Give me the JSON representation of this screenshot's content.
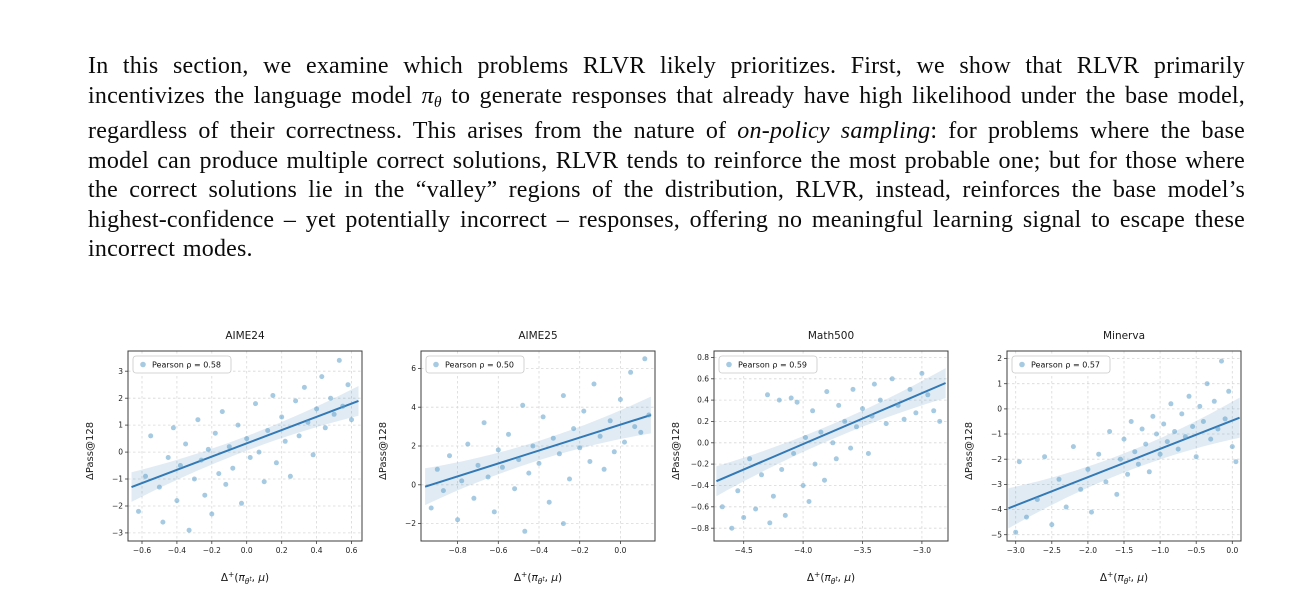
{
  "page": {
    "background": "#ffffff"
  },
  "paragraph": {
    "segments": [
      {
        "text": "In this section, we examine which problems RLVR likely prioritizes. First, we show that RLVR primarily incentivizes the language model ",
        "style": "normal"
      },
      {
        "text": "π",
        "style": "italic"
      },
      {
        "text": "θ",
        "style": "sub"
      },
      {
        "text": " to generate responses that already have high likelihood under the base model, regardless of their correctness. This arises from the nature of ",
        "style": "normal"
      },
      {
        "text": "on-policy sampling",
        "style": "italic"
      },
      {
        "text": ": for problems where the base model can produce multiple correct solutions, RLVR tends to reinforce the most probable one; but for those where the correct solutions lie in the “valley” regions of the distribution, RLVR, instead, reinforces the base model’s highest-confidence – yet potentially incorrect – responses, offering no meaningful learning signal to escape these incorrect modes.",
        "style": "normal"
      }
    ]
  },
  "figure": {
    "ylabel": "ΔPass@128",
    "xlabel_text": "Δ⁺(π_θᵗ, μ)",
    "xlabel_segments": [
      {
        "t": "Δ"
      },
      {
        "t": "+",
        "m": "sup"
      },
      {
        "t": "("
      },
      {
        "t": "π",
        "m": "i"
      },
      {
        "t": "θ",
        "m": "sub"
      },
      {
        "t": "t",
        "m": "subsup"
      },
      {
        "t": ", "
      },
      {
        "t": "μ",
        "m": "i"
      },
      {
        "t": ")"
      }
    ],
    "colors": {
      "point": "#5b9ec9",
      "line": "#3279b5",
      "grid": "#d8d8d8",
      "spine": "#3c3c3c"
    }
  },
  "chart_data": [
    {
      "type": "scatter",
      "title": "AIME24",
      "legend": "Pearson ρ = 0.58",
      "pearson_rho": 0.58,
      "xlabel": "Δ⁺(π_θᵗ, μ)",
      "ylabel": "ΔPass@128",
      "xlim": [
        -0.68,
        0.66
      ],
      "ylim": [
        -3.3,
        3.75
      ],
      "xticks": [
        -0.6,
        -0.4,
        -0.2,
        0,
        0.2,
        0.4,
        0.6
      ],
      "xtick_labels": [
        "−0.6",
        "−0.4",
        "−0.2",
        "0.0",
        "0.2",
        "0.4",
        "0.6"
      ],
      "yticks": [
        -3,
        -2,
        -1,
        0,
        1,
        2,
        3
      ],
      "ytick_labels": [
        "−3",
        "−2",
        "−1",
        "0",
        "1",
        "2",
        "3"
      ],
      "regression": {
        "x0": -0.66,
        "y0": -1.3,
        "x1": 0.64,
        "y1": 1.9,
        "band_end": 0.55,
        "band_mid": 0.27
      },
      "points": [
        [
          -0.62,
          -2.2
        ],
        [
          -0.58,
          -0.9
        ],
        [
          -0.55,
          0.6
        ],
        [
          -0.5,
          -1.3
        ],
        [
          -0.48,
          -2.6
        ],
        [
          -0.45,
          -0.2
        ],
        [
          -0.42,
          0.9
        ],
        [
          -0.4,
          -1.8
        ],
        [
          -0.38,
          -0.5
        ],
        [
          -0.35,
          0.3
        ],
        [
          -0.33,
          -2.9
        ],
        [
          -0.3,
          -1.0
        ],
        [
          -0.28,
          1.2
        ],
        [
          -0.26,
          -0.3
        ],
        [
          -0.24,
          -1.6
        ],
        [
          -0.22,
          0.1
        ],
        [
          -0.2,
          -2.3
        ],
        [
          -0.18,
          0.7
        ],
        [
          -0.16,
          -0.8
        ],
        [
          -0.14,
          1.5
        ],
        [
          -0.12,
          -1.2
        ],
        [
          -0.1,
          0.2
        ],
        [
          -0.08,
          -0.6
        ],
        [
          -0.05,
          1.0
        ],
        [
          -0.03,
          -1.9
        ],
        [
          0.0,
          0.5
        ],
        [
          0.02,
          -0.2
        ],
        [
          0.05,
          1.8
        ],
        [
          0.07,
          0.0
        ],
        [
          0.1,
          -1.1
        ],
        [
          0.12,
          0.8
        ],
        [
          0.15,
          2.1
        ],
        [
          0.17,
          -0.4
        ],
        [
          0.2,
          1.3
        ],
        [
          0.22,
          0.4
        ],
        [
          0.25,
          -0.9
        ],
        [
          0.28,
          1.9
        ],
        [
          0.3,
          0.6
        ],
        [
          0.33,
          2.4
        ],
        [
          0.35,
          1.1
        ],
        [
          0.38,
          -0.1
        ],
        [
          0.4,
          1.6
        ],
        [
          0.43,
          2.8
        ],
        [
          0.45,
          0.9
        ],
        [
          0.48,
          2.0
        ],
        [
          0.5,
          1.4
        ],
        [
          0.53,
          3.4
        ],
        [
          0.55,
          1.7
        ],
        [
          0.58,
          2.5
        ],
        [
          0.6,
          1.2
        ]
      ]
    },
    {
      "type": "scatter",
      "title": "AIME25",
      "legend": "Pearson ρ = 0.50",
      "pearson_rho": 0.5,
      "xlabel": "Δ⁺(π_θᵗ, μ)",
      "ylabel": "ΔPass@128",
      "xlim": [
        -0.98,
        0.17
      ],
      "ylim": [
        -2.9,
        6.9
      ],
      "xticks": [
        -0.8,
        -0.6,
        -0.4,
        -0.2,
        0
      ],
      "xtick_labels": [
        "−0.8",
        "−0.6",
        "−0.4",
        "−0.2",
        "0.0"
      ],
      "yticks": [
        -2,
        0,
        2,
        4,
        6
      ],
      "ytick_labels": [
        "−2",
        "0",
        "2",
        "4",
        "6"
      ],
      "regression": {
        "x0": -0.96,
        "y0": -0.1,
        "x1": 0.15,
        "y1": 3.6,
        "band_end": 0.95,
        "band_mid": 0.5
      },
      "points": [
        [
          -0.93,
          -1.2
        ],
        [
          -0.9,
          0.8
        ],
        [
          -0.87,
          -0.3
        ],
        [
          -0.84,
          1.5
        ],
        [
          -0.8,
          -1.8
        ],
        [
          -0.78,
          0.2
        ],
        [
          -0.75,
          2.1
        ],
        [
          -0.72,
          -0.7
        ],
        [
          -0.7,
          1.0
        ],
        [
          -0.67,
          3.2
        ],
        [
          -0.65,
          0.4
        ],
        [
          -0.62,
          -1.4
        ],
        [
          -0.6,
          1.8
        ],
        [
          -0.58,
          0.9
        ],
        [
          -0.55,
          2.6
        ],
        [
          -0.52,
          -0.2
        ],
        [
          -0.5,
          1.3
        ],
        [
          -0.48,
          4.1
        ],
        [
          -0.47,
          -2.4
        ],
        [
          -0.45,
          0.6
        ],
        [
          -0.43,
          2.0
        ],
        [
          -0.4,
          1.1
        ],
        [
          -0.38,
          3.5
        ],
        [
          -0.35,
          -0.9
        ],
        [
          -0.33,
          2.4
        ],
        [
          -0.3,
          1.6
        ],
        [
          -0.28,
          -2.0
        ],
        [
          -0.28,
          4.6
        ],
        [
          -0.25,
          0.3
        ],
        [
          -0.23,
          2.9
        ],
        [
          -0.2,
          1.9
        ],
        [
          -0.18,
          3.8
        ],
        [
          -0.15,
          1.2
        ],
        [
          -0.13,
          5.2
        ],
        [
          -0.1,
          2.5
        ],
        [
          -0.08,
          0.8
        ],
        [
          -0.05,
          3.3
        ],
        [
          -0.03,
          1.7
        ],
        [
          0.0,
          4.4
        ],
        [
          0.02,
          2.2
        ],
        [
          0.05,
          5.8
        ],
        [
          0.07,
          3.0
        ],
        [
          0.1,
          2.7
        ],
        [
          0.12,
          6.5
        ],
        [
          0.14,
          3.6
        ]
      ]
    },
    {
      "type": "scatter",
      "title": "Math500",
      "legend": "Pearson ρ = 0.59",
      "pearson_rho": 0.59,
      "xlabel": "Δ⁺(π_θᵗ, μ)",
      "ylabel": "ΔPass@128",
      "xlim": [
        -4.75,
        -2.78
      ],
      "ylim": [
        -0.92,
        0.86
      ],
      "xticks": [
        -4.5,
        -4.0,
        -3.5,
        -3.0
      ],
      "xtick_labels": [
        "−4.5",
        "−4.0",
        "−3.5",
        "−3.0"
      ],
      "yticks": [
        -0.8,
        -0.6,
        -0.4,
        -0.2,
        0,
        0.2,
        0.4,
        0.6,
        0.8
      ],
      "ytick_labels": [
        "−0.8",
        "−0.6",
        "−0.4",
        "−0.2",
        "0.0",
        "0.2",
        "0.4",
        "0.6",
        "0.8"
      ],
      "regression": {
        "x0": -4.73,
        "y0": -0.36,
        "x1": -2.8,
        "y1": 0.56,
        "band_end": 0.14,
        "band_mid": 0.07
      },
      "points": [
        [
          -4.68,
          -0.6
        ],
        [
          -4.65,
          0.75
        ],
        [
          -4.6,
          -0.8
        ],
        [
          -4.55,
          -0.45
        ],
        [
          -4.5,
          -0.7
        ],
        [
          -4.45,
          -0.15
        ],
        [
          -4.4,
          -0.62
        ],
        [
          -4.35,
          -0.3
        ],
        [
          -4.3,
          0.45
        ],
        [
          -4.28,
          -0.75
        ],
        [
          -4.25,
          -0.5
        ],
        [
          -4.2,
          0.4
        ],
        [
          -4.18,
          -0.25
        ],
        [
          -4.15,
          -0.68
        ],
        [
          -4.1,
          0.42
        ],
        [
          -4.08,
          -0.1
        ],
        [
          -4.05,
          0.38
        ],
        [
          -4.0,
          -0.4
        ],
        [
          -3.98,
          0.05
        ],
        [
          -3.95,
          -0.55
        ],
        [
          -3.92,
          0.3
        ],
        [
          -3.9,
          -0.2
        ],
        [
          -3.85,
          0.1
        ],
        [
          -3.82,
          -0.35
        ],
        [
          -3.8,
          0.48
        ],
        [
          -3.75,
          0.0
        ],
        [
          -3.72,
          -0.15
        ],
        [
          -3.7,
          0.35
        ],
        [
          -3.65,
          0.2
        ],
        [
          -3.6,
          -0.05
        ],
        [
          -3.58,
          0.5
        ],
        [
          -3.55,
          0.15
        ],
        [
          -3.5,
          0.32
        ],
        [
          -3.45,
          -0.1
        ],
        [
          -3.42,
          0.25
        ],
        [
          -3.4,
          0.55
        ],
        [
          -3.35,
          0.4
        ],
        [
          -3.3,
          0.18
        ],
        [
          -3.25,
          0.6
        ],
        [
          -3.2,
          0.35
        ],
        [
          -3.15,
          0.22
        ],
        [
          -3.1,
          0.5
        ],
        [
          -3.05,
          0.28
        ],
        [
          -3.0,
          0.65
        ],
        [
          -2.95,
          0.45
        ],
        [
          -2.9,
          0.3
        ],
        [
          -2.85,
          0.2
        ]
      ]
    },
    {
      "type": "scatter",
      "title": "Minerva",
      "legend": "Pearson ρ = 0.57",
      "pearson_rho": 0.57,
      "xlabel": "Δ⁺(π_θᵗ, μ)",
      "ylabel": "ΔPass@128",
      "xlim": [
        -3.12,
        0.12
      ],
      "ylim": [
        -5.25,
        2.3
      ],
      "xticks": [
        -3.0,
        -2.5,
        -2.0,
        -1.5,
        -1.0,
        -0.5,
        0.0
      ],
      "xtick_labels": [
        "−3.0",
        "−2.5",
        "−2.0",
        "−1.5",
        "−1.0",
        "−0.5",
        "0.0"
      ],
      "yticks": [
        -5,
        -4,
        -3,
        -2,
        -1,
        0,
        1,
        2
      ],
      "ytick_labels": [
        "−5",
        "−4",
        "−3",
        "−2",
        "−1",
        "0",
        "1",
        "2"
      ],
      "regression": {
        "x0": -3.1,
        "y0": -3.95,
        "x1": 0.1,
        "y1": -0.35,
        "band_end": 0.8,
        "band_mid": 0.38
      },
      "points": [
        [
          -3.0,
          -4.9
        ],
        [
          -2.95,
          -2.1
        ],
        [
          -2.85,
          -4.3
        ],
        [
          -2.7,
          -3.6
        ],
        [
          -2.6,
          -1.9
        ],
        [
          -2.5,
          -4.6
        ],
        [
          -2.4,
          -2.8
        ],
        [
          -2.3,
          -3.9
        ],
        [
          -2.2,
          -1.5
        ],
        [
          -2.1,
          -3.2
        ],
        [
          -2.0,
          -2.4
        ],
        [
          -1.95,
          -4.1
        ],
        [
          -1.85,
          -1.8
        ],
        [
          -1.75,
          -2.9
        ],
        [
          -1.7,
          -0.9
        ],
        [
          -1.6,
          -3.4
        ],
        [
          -1.55,
          -2.0
        ],
        [
          -1.5,
          -1.2
        ],
        [
          -1.45,
          -2.6
        ],
        [
          -1.4,
          -0.5
        ],
        [
          -1.35,
          -1.7
        ],
        [
          -1.3,
          -2.2
        ],
        [
          -1.25,
          -0.8
        ],
        [
          -1.2,
          -1.4
        ],
        [
          -1.15,
          -2.5
        ],
        [
          -1.1,
          -0.3
        ],
        [
          -1.05,
          -1.0
        ],
        [
          -1.0,
          -1.8
        ],
        [
          -0.95,
          -0.6
        ],
        [
          -0.9,
          -1.3
        ],
        [
          -0.85,
          0.2
        ],
        [
          -0.8,
          -0.9
        ],
        [
          -0.75,
          -1.6
        ],
        [
          -0.7,
          -0.2
        ],
        [
          -0.65,
          -1.1
        ],
        [
          -0.6,
          0.5
        ],
        [
          -0.55,
          -0.7
        ],
        [
          -0.5,
          -1.9
        ],
        [
          -0.45,
          0.1
        ],
        [
          -0.4,
          -0.5
        ],
        [
          -0.35,
          1.0
        ],
        [
          -0.3,
          -1.2
        ],
        [
          -0.25,
          0.3
        ],
        [
          -0.2,
          -0.8
        ],
        [
          -0.15,
          1.9
        ],
        [
          -0.1,
          -0.4
        ],
        [
          -0.05,
          0.7
        ],
        [
          0.0,
          -1.5
        ],
        [
          0.05,
          -2.1
        ]
      ]
    }
  ]
}
